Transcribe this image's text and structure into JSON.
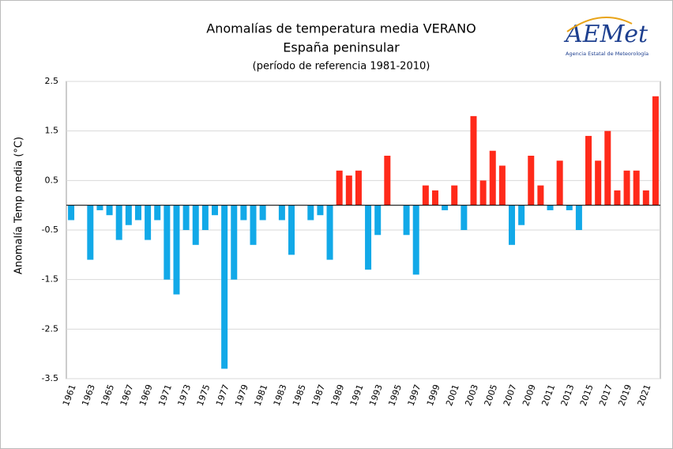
{
  "chart_data": {
    "type": "bar",
    "title": "Anomalías de temperatura media VERANO",
    "subtitle": "España peninsular",
    "note": "(período de referencia 1981-2010)",
    "y_label": "Anomalía Temp media (°C)",
    "categories": [
      "1961",
      null,
      "1963",
      null,
      "1965",
      null,
      "1967",
      null,
      "1969",
      null,
      "1971",
      null,
      "1973",
      null,
      "1975",
      null,
      "1977",
      null,
      "1979",
      null,
      "1981",
      null,
      "1983",
      null,
      "1985",
      null,
      "1987",
      null,
      "1989",
      null,
      "1991",
      null,
      "1993",
      null,
      "1995",
      null,
      "1997",
      null,
      "1999",
      null,
      "2001",
      null,
      "2003",
      null,
      "2005",
      null,
      "2007",
      null,
      "2009",
      null,
      "2011",
      null,
      "2013",
      null,
      "2015",
      null,
      "2017",
      null,
      "2019",
      null,
      "2021",
      null
    ],
    "values": [
      -0.3,
      0,
      -1.1,
      -0.1,
      -0.2,
      -0.7,
      -0.4,
      -0.3,
      -0.7,
      -0.3,
      -1.5,
      -1.8,
      -0.5,
      -0.8,
      -0.5,
      -0.2,
      -3.3,
      -1.5,
      -0.3,
      -0.8,
      -0.3,
      0,
      -0.3,
      -1.0,
      0,
      -0.3,
      -0.2,
      -1.1,
      0.7,
      0.6,
      0.7,
      -1.3,
      -0.6,
      1.0,
      0,
      -0.6,
      -1.4,
      0.4,
      0.3,
      -0.1,
      0.4,
      -0.5,
      1.8,
      0.5,
      1.1,
      0.8,
      -0.8,
      -0.4,
      1.0,
      0.4,
      -0.1,
      0.9,
      -0.1,
      -0.5,
      1.4,
      0.9,
      1.5,
      0.3,
      0.7,
      0.7,
      0.3,
      2.2
    ],
    "positive_color": "#ff2a1a",
    "negative_color": "#12a9e8",
    "ylim": [
      -3.5,
      2.5
    ],
    "yticks": [
      -3.5,
      -2.5,
      -1.5,
      -0.5,
      0.5,
      1.5,
      2.5
    ],
    "grid": true
  },
  "logo": {
    "name": "AEMet",
    "subtitle": "Agencia Estatal de Meteorología"
  }
}
